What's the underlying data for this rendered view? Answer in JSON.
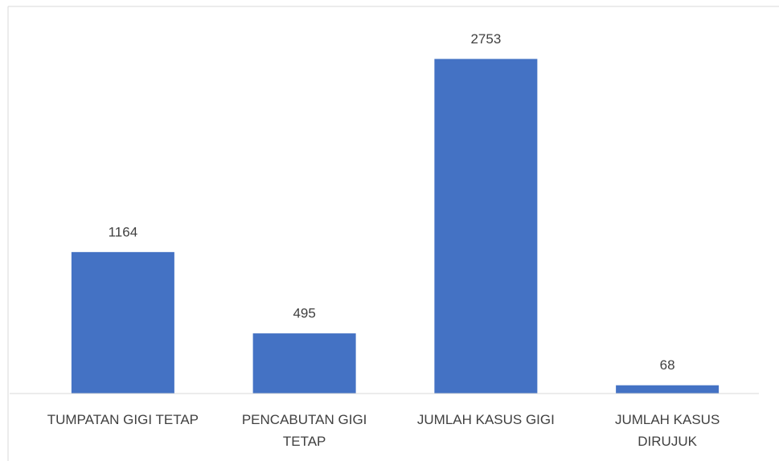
{
  "chart_data": {
    "type": "bar",
    "categories": [
      "TUMPATAN GIGI TETAP",
      "PENCABUTAN GIGI TETAP",
      "JUMLAH KASUS GIGI",
      "JUMLAH KASUS DIRUJUK"
    ],
    "values": [
      1164,
      495,
      2753,
      68
    ],
    "color": "#4472c4",
    "ylim": [
      0,
      3000
    ]
  }
}
